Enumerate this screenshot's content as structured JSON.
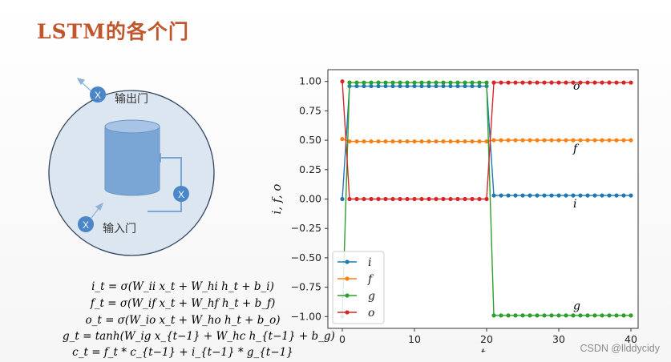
{
  "slide": {
    "title": "LSTM的各个门"
  },
  "diagram": {
    "output_gate_label": "输出门",
    "input_gate_label": "输入门",
    "gate_symbol": "X",
    "colors": {
      "circle_fill": "#dce6f1",
      "circle_stroke": "#34455e",
      "cylinder": "#7aa6d6",
      "gate": "#4a86c8"
    }
  },
  "equations": [
    "i_t = σ(W_ii x_t + W_hi h_t + b_i)",
    "f_t = σ(W_if x_t + W_hf h_t + b_f)",
    "o_t = σ(W_io x_t + W_ho h_t + b_o)",
    "g_t = tanh(W_ig x_{t−1} + W_hc h_{t−1} + b_g)",
    "c_t = f_t * c_{t−1} + i_{t−1} * g_{t−1}"
  ],
  "watermark": "CSDN @llddycidy",
  "chart_data": {
    "type": "line",
    "xlabel": "t",
    "ylabel": "i, f, o",
    "xlim": [
      -2,
      41
    ],
    "ylim": [
      -1.1,
      1.1
    ],
    "xticks": [
      0,
      10,
      20,
      30,
      40
    ],
    "yticks": [
      1.0,
      0.75,
      0.5,
      0.25,
      0.0,
      -0.25,
      -0.5,
      -0.75,
      -1.0
    ],
    "ytick_labels": [
      "1.00",
      "0.75",
      "0.50",
      "0.25",
      "0.00",
      "−0.25",
      "−0.50",
      "−0.75",
      "−1.00"
    ],
    "legend_position": "lower-left",
    "grid": false,
    "x": [
      0,
      1,
      2,
      3,
      4,
      5,
      6,
      7,
      8,
      9,
      10,
      11,
      12,
      13,
      14,
      15,
      16,
      17,
      18,
      19,
      20,
      21,
      22,
      23,
      24,
      25,
      26,
      27,
      28,
      29,
      30,
      31,
      32,
      33,
      34,
      35,
      36,
      37,
      38,
      39,
      40
    ],
    "series": [
      {
        "name": "i",
        "color": "#1f77b4",
        "values": [
          0.0,
          0.96,
          0.96,
          0.96,
          0.96,
          0.96,
          0.96,
          0.96,
          0.96,
          0.96,
          0.96,
          0.96,
          0.96,
          0.96,
          0.96,
          0.96,
          0.96,
          0.96,
          0.96,
          0.96,
          0.96,
          0.03,
          0.03,
          0.03,
          0.03,
          0.03,
          0.03,
          0.03,
          0.03,
          0.03,
          0.03,
          0.03,
          0.03,
          0.03,
          0.03,
          0.03,
          0.03,
          0.03,
          0.03,
          0.03,
          0.03
        ]
      },
      {
        "name": "f",
        "color": "#ff7f0e",
        "values": [
          0.51,
          0.49,
          0.49,
          0.49,
          0.49,
          0.49,
          0.49,
          0.49,
          0.49,
          0.49,
          0.49,
          0.49,
          0.49,
          0.49,
          0.49,
          0.49,
          0.49,
          0.49,
          0.49,
          0.49,
          0.49,
          0.5,
          0.5,
          0.5,
          0.5,
          0.5,
          0.5,
          0.5,
          0.5,
          0.5,
          0.5,
          0.5,
          0.5,
          0.5,
          0.5,
          0.5,
          0.5,
          0.5,
          0.5,
          0.5,
          0.5
        ]
      },
      {
        "name": "g",
        "color": "#2ca02c",
        "values": [
          -1.0,
          0.99,
          0.99,
          0.99,
          0.99,
          0.99,
          0.99,
          0.99,
          0.99,
          0.99,
          0.99,
          0.99,
          0.99,
          0.99,
          0.99,
          0.99,
          0.99,
          0.99,
          0.99,
          0.99,
          0.99,
          -0.99,
          -0.99,
          -0.99,
          -0.99,
          -0.99,
          -0.99,
          -0.99,
          -0.99,
          -0.99,
          -0.99,
          -0.99,
          -0.99,
          -0.99,
          -0.99,
          -0.99,
          -0.99,
          -0.99,
          -0.99,
          -0.99,
          -0.99
        ]
      },
      {
        "name": "o",
        "color": "#d62728",
        "values": [
          1.0,
          0.0,
          0.0,
          0.0,
          0.0,
          0.0,
          0.0,
          0.0,
          0.0,
          0.0,
          0.0,
          0.0,
          0.0,
          0.0,
          0.0,
          0.0,
          0.0,
          0.0,
          0.0,
          0.0,
          0.0,
          0.99,
          0.99,
          0.99,
          0.99,
          0.99,
          0.99,
          0.99,
          0.99,
          0.99,
          0.99,
          0.99,
          0.99,
          0.99,
          0.99,
          0.99,
          0.99,
          0.99,
          0.99,
          0.99,
          0.99
        ]
      }
    ],
    "annotations": [
      {
        "text": "o",
        "x": 32,
        "y": 0.93
      },
      {
        "text": "f",
        "x": 32,
        "y": 0.4
      },
      {
        "text": "i",
        "x": 32,
        "y": -0.07
      },
      {
        "text": "g",
        "x": 32,
        "y": -0.94
      }
    ]
  }
}
